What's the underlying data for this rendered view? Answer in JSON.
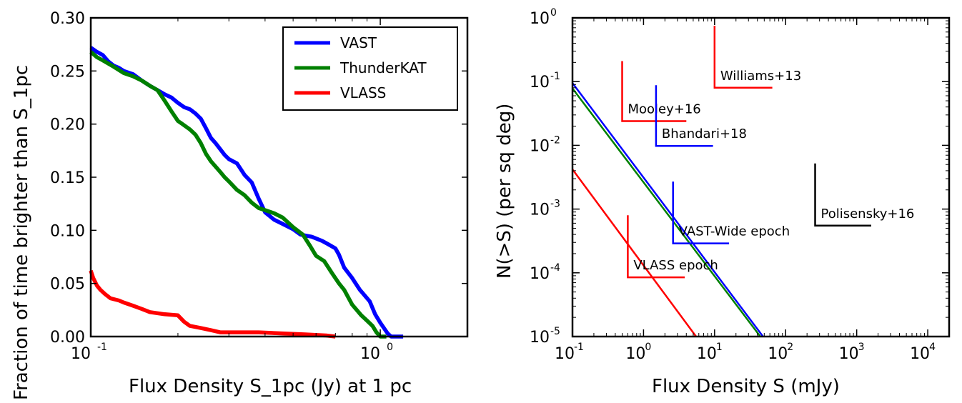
{
  "chart_data": [
    {
      "type": "line",
      "xlabel": "Flux Density S_1pc (Jy) at 1 pc",
      "ylabel": "Fraction of time brighter than S_1pc",
      "xscale": "log",
      "xlim": [
        0.1,
        2.0
      ],
      "ylim": [
        0.0,
        0.3
      ],
      "yticks": [
        "0.00",
        "0.05",
        "0.10",
        "0.15",
        "0.20",
        "0.25",
        "0.30"
      ],
      "xticks": [
        "10",
        "10"
      ],
      "xtick_exponents": [
        "-1",
        "0"
      ],
      "legend_position": "upper right",
      "series": [
        {
          "name": "VAST",
          "color": "#0000ff",
          "points": [
            [
              0.1,
              0.272
            ],
            [
              0.105,
              0.268
            ],
            [
              0.11,
              0.265
            ],
            [
              0.115,
              0.259
            ],
            [
              0.12,
              0.255
            ],
            [
              0.125,
              0.253
            ],
            [
              0.13,
              0.25
            ],
            [
              0.14,
              0.247
            ],
            [
              0.15,
              0.241
            ],
            [
              0.16,
              0.236
            ],
            [
              0.17,
              0.232
            ],
            [
              0.18,
              0.228
            ],
            [
              0.19,
              0.225
            ],
            [
              0.2,
              0.22
            ],
            [
              0.21,
              0.216
            ],
            [
              0.22,
              0.214
            ],
            [
              0.23,
              0.21
            ],
            [
              0.24,
              0.205
            ],
            [
              0.25,
              0.196
            ],
            [
              0.26,
              0.187
            ],
            [
              0.27,
              0.182
            ],
            [
              0.29,
              0.171
            ],
            [
              0.3,
              0.167
            ],
            [
              0.32,
              0.163
            ],
            [
              0.34,
              0.152
            ],
            [
              0.36,
              0.145
            ],
            [
              0.38,
              0.13
            ],
            [
              0.4,
              0.117
            ],
            [
              0.43,
              0.11
            ],
            [
              0.46,
              0.106
            ],
            [
              0.5,
              0.101
            ],
            [
              0.53,
              0.096
            ],
            [
              0.58,
              0.094
            ],
            [
              0.63,
              0.09
            ],
            [
              0.66,
              0.087
            ],
            [
              0.7,
              0.083
            ],
            [
              0.72,
              0.077
            ],
            [
              0.75,
              0.065
            ],
            [
              0.8,
              0.055
            ],
            [
              0.85,
              0.044
            ],
            [
              0.92,
              0.033
            ],
            [
              0.96,
              0.021
            ],
            [
              1.0,
              0.013
            ],
            [
              1.06,
              0.003
            ],
            [
              1.09,
              0.0
            ],
            [
              1.2,
              0.0
            ]
          ]
        },
        {
          "name": "ThunderKAT",
          "color": "#008000",
          "points": [
            [
              0.1,
              0.268
            ],
            [
              0.105,
              0.263
            ],
            [
              0.11,
              0.26
            ],
            [
              0.12,
              0.254
            ],
            [
              0.13,
              0.248
            ],
            [
              0.14,
              0.245
            ],
            [
              0.15,
              0.241
            ],
            [
              0.16,
              0.236
            ],
            [
              0.17,
              0.232
            ],
            [
              0.18,
              0.222
            ],
            [
              0.19,
              0.212
            ],
            [
              0.2,
              0.203
            ],
            [
              0.21,
              0.199
            ],
            [
              0.22,
              0.195
            ],
            [
              0.23,
              0.19
            ],
            [
              0.24,
              0.182
            ],
            [
              0.25,
              0.172
            ],
            [
              0.26,
              0.165
            ],
            [
              0.28,
              0.155
            ],
            [
              0.29,
              0.15
            ],
            [
              0.3,
              0.146
            ],
            [
              0.32,
              0.138
            ],
            [
              0.34,
              0.133
            ],
            [
              0.36,
              0.126
            ],
            [
              0.38,
              0.121
            ],
            [
              0.4,
              0.119
            ],
            [
              0.43,
              0.116
            ],
            [
              0.46,
              0.112
            ],
            [
              0.5,
              0.103
            ],
            [
              0.54,
              0.096
            ],
            [
              0.57,
              0.086
            ],
            [
              0.6,
              0.076
            ],
            [
              0.64,
              0.071
            ],
            [
              0.68,
              0.06
            ],
            [
              0.72,
              0.05
            ],
            [
              0.75,
              0.044
            ],
            [
              0.8,
              0.03
            ],
            [
              0.86,
              0.02
            ],
            [
              0.9,
              0.015
            ],
            [
              0.94,
              0.01
            ],
            [
              0.97,
              0.004
            ],
            [
              1.0,
              0.0
            ],
            [
              1.05,
              0.0
            ]
          ]
        },
        {
          "name": "VLASS",
          "color": "#ff0000",
          "points": [
            [
              0.1,
              0.062
            ],
            [
              0.102,
              0.055
            ],
            [
              0.105,
              0.048
            ],
            [
              0.108,
              0.044
            ],
            [
              0.112,
              0.04
            ],
            [
              0.117,
              0.036
            ],
            [
              0.125,
              0.034
            ],
            [
              0.13,
              0.032
            ],
            [
              0.14,
              0.029
            ],
            [
              0.15,
              0.026
            ],
            [
              0.16,
              0.023
            ],
            [
              0.18,
              0.021
            ],
            [
              0.2,
              0.02
            ],
            [
              0.21,
              0.014
            ],
            [
              0.22,
              0.01
            ],
            [
              0.24,
              0.008
            ],
            [
              0.26,
              0.006
            ],
            [
              0.28,
              0.004
            ],
            [
              0.32,
              0.004
            ],
            [
              0.38,
              0.004
            ],
            [
              0.45,
              0.003
            ],
            [
              0.55,
              0.002
            ],
            [
              0.65,
              0.001
            ],
            [
              0.7,
              0.0
            ]
          ]
        }
      ]
    },
    {
      "type": "line",
      "xlabel": "Flux Density S (mJy)",
      "ylabel": "N(>S) (per sq deg)",
      "xscale": "log",
      "yscale": "log",
      "xlim": [
        0.1,
        20000
      ],
      "ylim": [
        1e-05,
        1
      ],
      "xticks": [
        "10",
        "10",
        "10",
        "10",
        "10",
        "10"
      ],
      "xtick_exponents": [
        "-1",
        "0",
        "1",
        "2",
        "3",
        "4"
      ],
      "yticks": [
        "10",
        "10",
        "10",
        "10",
        "10",
        "10"
      ],
      "ytick_exponents": [
        "-5",
        "-4",
        "-3",
        "-2",
        "-1",
        "0"
      ],
      "series": [
        {
          "color": "#0000ff",
          "points": [
            [
              0.1,
              0.095
            ],
            [
              48,
              1e-05
            ]
          ]
        },
        {
          "color": "#008000",
          "points": [
            [
              0.1,
              0.078
            ],
            [
              44,
              1e-05
            ]
          ]
        },
        {
          "color": "#ff0000",
          "points": [
            [
              0.1,
              0.0042
            ],
            [
              5.5,
              1e-05
            ]
          ]
        }
      ],
      "annotations": [
        {
          "text": "Williams+13",
          "color": "#ff0000",
          "x": 10,
          "y": 0.08,
          "y_top": 0.75,
          "x_end": 65
        },
        {
          "text": "Mooley+16",
          "color": "#ff0000",
          "x": 0.5,
          "y": 0.024,
          "y_top": 0.21,
          "x_end": 4.0
        },
        {
          "text": "Bhandari+18",
          "color": "#0000ff",
          "x": 1.5,
          "y": 0.0098,
          "y_top": 0.088,
          "x_end": 9.5
        },
        {
          "text": "Polisensky+16",
          "color": "#000000",
          "x": 260,
          "y": 0.00055,
          "y_top": 0.0052,
          "x_end": 1600
        },
        {
          "text": "VAST-Wide epoch",
          "color": "#0000ff",
          "x": 2.6,
          "y": 0.00029,
          "y_top": 0.0027,
          "x_end": 16
        },
        {
          "text": "VLASS epoch",
          "color": "#ff0000",
          "x": 0.6,
          "y": 8.5e-05,
          "y_top": 0.0008,
          "x_end": 3.8
        }
      ]
    }
  ]
}
